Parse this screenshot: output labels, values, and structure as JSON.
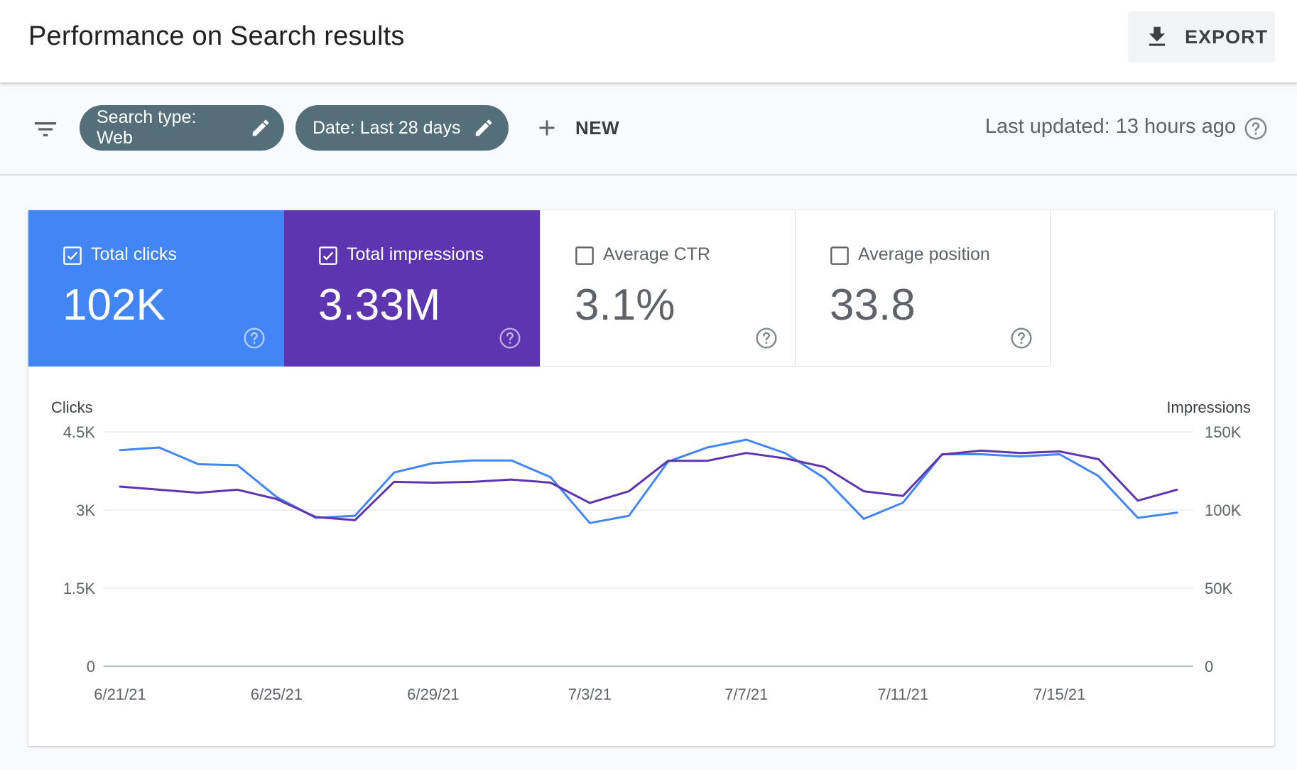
{
  "header": {
    "title": "Performance on Search results",
    "export_label": "EXPORT"
  },
  "filters": {
    "chips": [
      {
        "label": "Search type: Web"
      },
      {
        "label": "Date: Last 28 days"
      }
    ],
    "new_label": "NEW",
    "last_updated": "Last updated: 13 hours ago"
  },
  "metrics": [
    {
      "label": "Total clicks",
      "value": "102K",
      "checked": true,
      "color": "#4285f4"
    },
    {
      "label": "Total impressions",
      "value": "3.33M",
      "checked": true,
      "color": "#5e35b1"
    },
    {
      "label": "Average CTR",
      "value": "3.1%",
      "checked": false,
      "color": "#ffffff"
    },
    {
      "label": "Average position",
      "value": "33.8",
      "checked": false,
      "color": "#ffffff"
    }
  ],
  "chart_data": {
    "type": "line",
    "left_axis_label": "Clicks",
    "right_axis_label": "Impressions",
    "left_ticks": [
      {
        "value": 0,
        "label": "0"
      },
      {
        "value": 1500,
        "label": "1.5K"
      },
      {
        "value": 3000,
        "label": "3K"
      },
      {
        "value": 4500,
        "label": "4.5K"
      }
    ],
    "right_ticks": [
      {
        "value": 0,
        "label": "0"
      },
      {
        "value": 50000,
        "label": "50K"
      },
      {
        "value": 100000,
        "label": "100K"
      },
      {
        "value": 150000,
        "label": "150K"
      }
    ],
    "left_ylim": [
      0,
      4500
    ],
    "right_ylim": [
      0,
      150000
    ],
    "x_labels": [
      "6/21/21",
      "6/25/21",
      "6/29/21",
      "7/3/21",
      "7/7/21",
      "7/11/21",
      "7/15/21"
    ],
    "x_label_indices": [
      0,
      4,
      8,
      12,
      16,
      20,
      24
    ],
    "num_points": 28,
    "series": [
      {
        "name": "Clicks",
        "axis": "left",
        "color": "#4285f4",
        "values": [
          4150,
          4200,
          3880,
          3860,
          3250,
          2850,
          2890,
          3720,
          3900,
          3950,
          3950,
          3630,
          2750,
          2890,
          3930,
          4200,
          4350,
          4090,
          3610,
          2830,
          3140,
          4070,
          4070,
          4030,
          4070,
          3650,
          2850,
          2950
        ]
      },
      {
        "name": "Impressions",
        "axis": "right",
        "color": "#5e35b1",
        "values": [
          115000,
          113000,
          111000,
          113000,
          107000,
          95500,
          93500,
          118000,
          117500,
          118000,
          119500,
          117500,
          104500,
          112000,
          131500,
          131500,
          136500,
          133000,
          127500,
          112000,
          109000,
          135500,
          138000,
          136500,
          137500,
          132500,
          106000,
          113000
        ]
      }
    ]
  }
}
